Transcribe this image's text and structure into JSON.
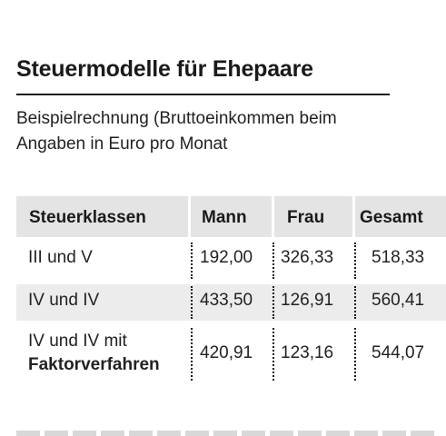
{
  "title": "Steuermodelle für Ehepaare",
  "subtitle": {
    "line1": "Beispielrechnung (Bruttoeinkommen beim",
    "line2": "Angaben in Euro pro Monat"
  },
  "table": {
    "headers": [
      "Steuerklassen",
      "Mann",
      "Frau",
      "Gesamt"
    ],
    "rows": [
      {
        "label": "III und V",
        "label_bold": "",
        "mann": "192,00",
        "frau": "326,33",
        "gesamt": "518,33"
      },
      {
        "label": "IV und IV",
        "label_bold": "",
        "mann": "433,50",
        "frau": "126,91",
        "gesamt": "560,41"
      },
      {
        "label": "IV und IV mit",
        "label_bold": "Faktorverfahren",
        "mann": "420,91",
        "frau": "123,16",
        "gesamt": "544,07"
      }
    ]
  },
  "colors": {
    "header_bg": "#e4e4e4",
    "row_shade": "#ececec",
    "text": "#1a1a1a"
  }
}
